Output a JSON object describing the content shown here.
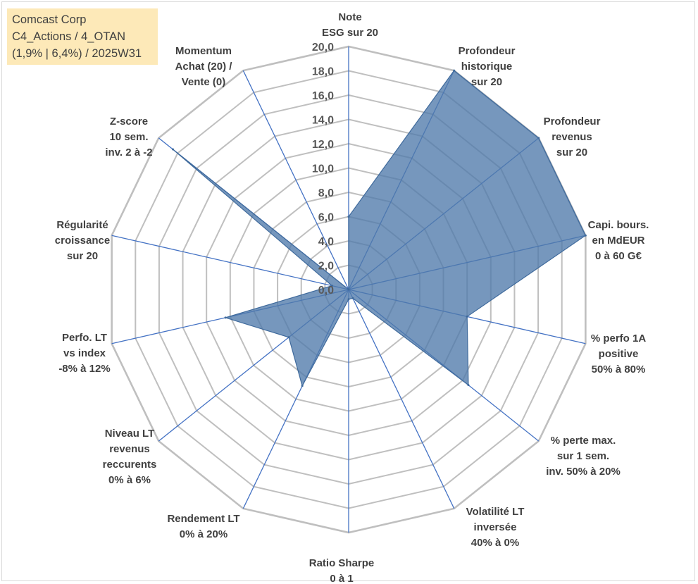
{
  "info": {
    "lines": [
      "Comcast Corp",
      "C4_Actions / 4_OTAN",
      "(1,9% | 6,4%) / 2025W31"
    ]
  },
  "chart_data": {
    "type": "radar",
    "r_min": 0,
    "r_max": 20,
    "tick_step": 2,
    "tick_labels": [
      "0,0",
      "2,0",
      "4,0",
      "6,0",
      "8,0",
      "10,0",
      "12,0",
      "14,0",
      "16,0",
      "18,0",
      "20,0"
    ],
    "grid": true,
    "colors": {
      "fill": "#4f7aab",
      "fill_opacity": 0.78,
      "outline": "#3f6a9c",
      "grid_ring": "#bfbfbf",
      "spoke": "#4472c4",
      "label": "#404040"
    },
    "axes": [
      {
        "label": [
          "Note",
          "ESG sur 20"
        ],
        "value": 6.0
      },
      {
        "label": [
          "Profondeur",
          "historique",
          "sur 20"
        ],
        "value": 20.0
      },
      {
        "label": [
          "Profondeur",
          "revenus",
          "sur 20"
        ],
        "value": 20.0
      },
      {
        "label": [
          "Capi. bours.",
          "en MdEUR",
          "0 à 60 G€"
        ],
        "value": 20.0
      },
      {
        "label": [
          "% perfo 1A",
          "positive",
          "50% à 80%"
        ],
        "value": 10.0
      },
      {
        "label": [
          "% perte max.",
          "sur 1 sem.",
          "inv. 50% à 20%"
        ],
        "value": 12.6
      },
      {
        "label": [
          "Volatilité LT",
          "inversée",
          "40% à 0%"
        ],
        "value": 0.8
      },
      {
        "label": [
          "Ratio Sharpe",
          "0 à 1"
        ],
        "value": 0.8
      },
      {
        "label": [
          "Rendement LT",
          "0% à 20%"
        ],
        "value": 8.8
      },
      {
        "label": [
          "Niveau LT",
          "revenus",
          "reccurents",
          "0% à 6%"
        ],
        "value": 6.3
      },
      {
        "label": [
          "Perfo. LT",
          "vs index",
          "-8% à 12%"
        ],
        "value": 10.4
      },
      {
        "label": [
          "Régularité",
          "croissance",
          "sur 20"
        ],
        "value": 1.4
      },
      {
        "label": [
          "Z-score",
          "10 sem.",
          "inv. 2 à -2"
        ],
        "value": 18.5
      },
      {
        "label": [
          "Momentum",
          "Achat (20) /",
          "Vente (0)"
        ],
        "value": 0.0
      }
    ]
  }
}
